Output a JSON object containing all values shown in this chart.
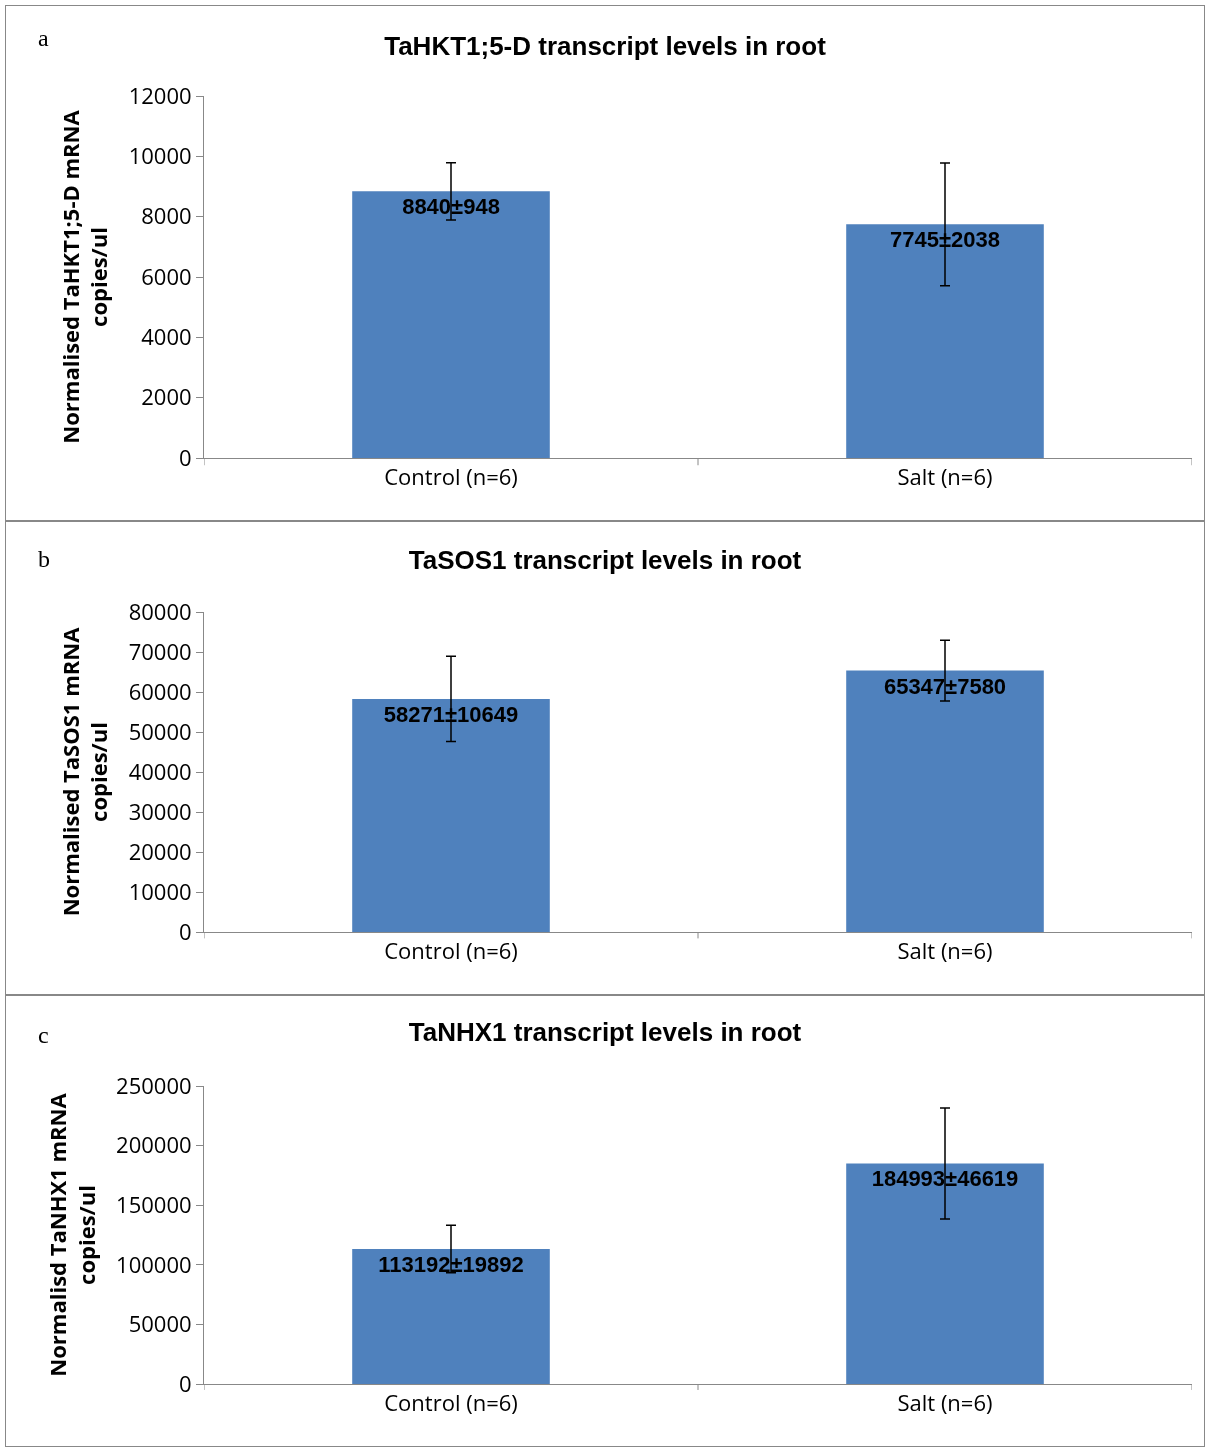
{
  "chart_data": [
    {
      "type": "bar",
      "title": "TaHKT1;5-D transcript levels in root",
      "ylabel": "Normalised TaHKT1;5-D mRNA\ncopies/ul",
      "annotations": [
        "a"
      ],
      "categories": [
        "Control (n=6)",
        "Salt (n=6)"
      ],
      "values": [
        8840,
        7745
      ],
      "errors": [
        948,
        2038
      ],
      "value_labels": [
        "8840±948",
        "7745±2038"
      ],
      "color": "#4f81bd",
      "ylim": [
        0,
        12000
      ],
      "yticks": [
        0,
        2000,
        4000,
        6000,
        8000,
        10000,
        12000
      ],
      "grid": false,
      "legend": false
    },
    {
      "type": "bar",
      "title": "TaSOS1 transcript levels in root",
      "ylabel": "Normalised TaSOS1 mRNA\ncopies/ul",
      "annotations": [
        "b"
      ],
      "categories": [
        "Control (n=6)",
        "Salt (n=6)"
      ],
      "values": [
        58271,
        65347
      ],
      "errors": [
        10649,
        7580
      ],
      "value_labels": [
        "58271±10649",
        "65347±7580"
      ],
      "color": "#4f81bd",
      "ylim": [
        0,
        80000
      ],
      "yticks": [
        0,
        10000,
        20000,
        30000,
        40000,
        50000,
        60000,
        70000,
        80000
      ],
      "grid": false,
      "legend": false
    },
    {
      "type": "bar",
      "title": "TaNHX1 transcript levels in root",
      "ylabel": "Normalisd TaNHX1 mRNA\ncopies/ul",
      "annotations": [
        "c"
      ],
      "categories": [
        "Control (n=6)",
        "Salt (n=6)"
      ],
      "values": [
        113192,
        184993
      ],
      "errors": [
        19892,
        46619
      ],
      "value_labels": [
        "113192±19892",
        "184993±46619"
      ],
      "color": "#4f81bd",
      "ylim": [
        0,
        250000
      ],
      "yticks": [
        0,
        50000,
        100000,
        150000,
        200000,
        250000
      ],
      "grid": false,
      "legend": false
    }
  ]
}
